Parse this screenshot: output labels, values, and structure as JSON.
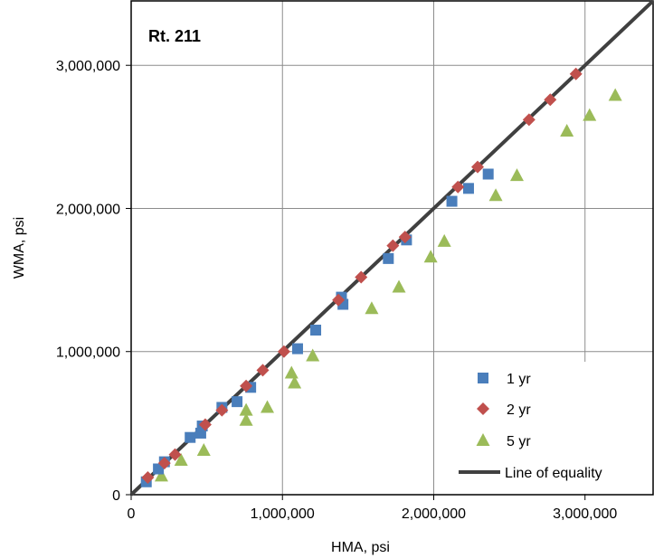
{
  "chart_data": {
    "type": "scatter",
    "title": "Rt. 211",
    "xlabel": "HMA, psi",
    "ylabel": "WMA, psi",
    "xlim": [
      0,
      3450000
    ],
    "ylim": [
      0,
      3450000
    ],
    "x_ticks": [
      {
        "value": 0,
        "label": "0"
      },
      {
        "value": 1000000,
        "label": "1,000,000"
      },
      {
        "value": 2000000,
        "label": "2,000,000"
      },
      {
        "value": 3000000,
        "label": "3,000,000"
      }
    ],
    "y_ticks": [
      {
        "value": 0,
        "label": "0"
      },
      {
        "value": 1000000,
        "label": "1,000,000"
      },
      {
        "value": 2000000,
        "label": "2,000,000"
      },
      {
        "value": 3000000,
        "label": "3,000,000"
      }
    ],
    "grid": true,
    "legend_position": "bottom-right",
    "series": [
      {
        "name": "1 yr",
        "marker": "square",
        "color": "#4a7ebb",
        "points": [
          [
            100000,
            90000
          ],
          [
            180000,
            180000
          ],
          [
            220000,
            230000
          ],
          [
            390000,
            400000
          ],
          [
            460000,
            430000
          ],
          [
            470000,
            480000
          ],
          [
            600000,
            610000
          ],
          [
            700000,
            650000
          ],
          [
            790000,
            750000
          ],
          [
            1100000,
            1020000
          ],
          [
            1220000,
            1150000
          ],
          [
            1390000,
            1380000
          ],
          [
            1400000,
            1330000
          ],
          [
            1700000,
            1650000
          ],
          [
            1820000,
            1780000
          ],
          [
            2120000,
            2050000
          ],
          [
            2230000,
            2140000
          ],
          [
            2360000,
            2240000
          ]
        ]
      },
      {
        "name": "2 yr",
        "marker": "diamond",
        "color": "#c0504d",
        "points": [
          [
            110000,
            120000
          ],
          [
            220000,
            220000
          ],
          [
            290000,
            280000
          ],
          [
            490000,
            490000
          ],
          [
            600000,
            590000
          ],
          [
            760000,
            760000
          ],
          [
            870000,
            870000
          ],
          [
            1010000,
            1000000
          ],
          [
            1370000,
            1360000
          ],
          [
            1520000,
            1520000
          ],
          [
            1730000,
            1740000
          ],
          [
            1810000,
            1800000
          ],
          [
            2160000,
            2150000
          ],
          [
            2290000,
            2290000
          ],
          [
            2630000,
            2620000
          ],
          [
            2770000,
            2760000
          ],
          [
            2940000,
            2940000
          ]
        ]
      },
      {
        "name": "5 yr",
        "marker": "triangle",
        "color": "#9bbb59",
        "points": [
          [
            200000,
            130000
          ],
          [
            330000,
            240000
          ],
          [
            480000,
            310000
          ],
          [
            760000,
            520000
          ],
          [
            760000,
            590000
          ],
          [
            900000,
            610000
          ],
          [
            1060000,
            850000
          ],
          [
            1080000,
            780000
          ],
          [
            1200000,
            970000
          ],
          [
            1590000,
            1300000
          ],
          [
            1770000,
            1450000
          ],
          [
            1980000,
            1660000
          ],
          [
            2070000,
            1770000
          ],
          [
            2410000,
            2090000
          ],
          [
            2550000,
            2230000
          ],
          [
            2880000,
            2540000
          ],
          [
            3030000,
            2650000
          ],
          [
            3200000,
            2790000
          ]
        ]
      }
    ],
    "reference_line": {
      "name": "Line of equality",
      "color": "#404040",
      "from": [
        0,
        0
      ],
      "to": [
        3450000,
        3450000
      ]
    }
  }
}
